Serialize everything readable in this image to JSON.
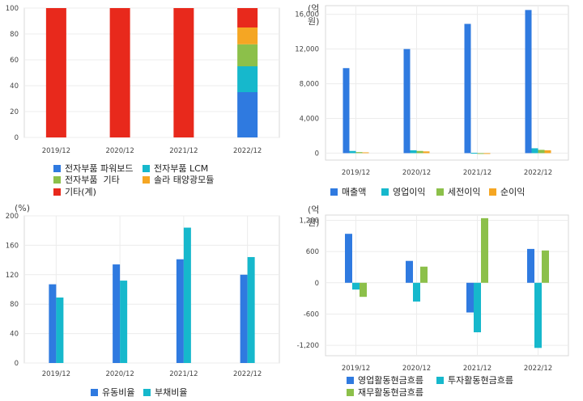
{
  "chart_data": [
    {
      "type": "bar",
      "stacked": true,
      "title": "",
      "unit": "",
      "categories": [
        "2019/12",
        "2020/12",
        "2021/12",
        "2022/12"
      ],
      "ylim": [
        0,
        100
      ],
      "yticks": [
        0,
        20,
        40,
        60,
        80,
        100
      ],
      "series": [
        {
          "name": "전자부품 파워보드",
          "color": "#2f7ae0",
          "values": [
            0,
            0,
            0,
            35
          ]
        },
        {
          "name": "전자부품 LCM",
          "color": "#16b8cc",
          "values": [
            0,
            0,
            0,
            20
          ]
        },
        {
          "name": "전자부품  기타",
          "color": "#8cc04a",
          "values": [
            0,
            0,
            0,
            17
          ]
        },
        {
          "name": "솔라 태양광모듈",
          "color": "#f5a623",
          "values": [
            0,
            0,
            0,
            13
          ]
        },
        {
          "name": "기타(계)",
          "color": "#e8291c",
          "values": [
            100,
            100,
            100,
            15
          ]
        }
      ],
      "legend_position": "bottom",
      "grid": true
    },
    {
      "type": "bar",
      "title": "",
      "unit": "(억원)",
      "categories": [
        "2019/12",
        "2020/12",
        "2021/12",
        "2022/12"
      ],
      "ylim": [
        -800,
        17000
      ],
      "yticks": [
        0,
        4000,
        8000,
        12000,
        16000
      ],
      "ytick_labels": [
        "0",
        "4,000",
        "8,000",
        "12,000",
        "16,000"
      ],
      "series": [
        {
          "name": "매출액",
          "color": "#2f7ae0",
          "values": [
            9800,
            12000,
            14900,
            16500
          ]
        },
        {
          "name": "영업이익",
          "color": "#16b8cc",
          "values": [
            250,
            330,
            40,
            560
          ]
        },
        {
          "name": "세전이익",
          "color": "#8cc04a",
          "values": [
            120,
            250,
            -80,
            380
          ]
        },
        {
          "name": "순이익",
          "color": "#f5a623",
          "values": [
            90,
            200,
            -90,
            330
          ]
        }
      ],
      "legend_position": "bottom",
      "grid": true
    },
    {
      "type": "bar",
      "title": "",
      "unit": "(%)",
      "categories": [
        "2019/12",
        "2020/12",
        "2021/12",
        "2022/12"
      ],
      "ylim": [
        0,
        200
      ],
      "yticks": [
        0,
        40,
        80,
        120,
        160,
        200
      ],
      "series": [
        {
          "name": "유동비율",
          "color": "#2f7ae0",
          "values": [
            107,
            134,
            141,
            120
          ]
        },
        {
          "name": "부채비율",
          "color": "#16b8cc",
          "values": [
            89,
            112,
            184,
            144
          ]
        }
      ],
      "legend_position": "bottom",
      "grid": true
    },
    {
      "type": "bar",
      "title": "",
      "unit": "(억원)",
      "categories": [
        "2019/12",
        "2020/12",
        "2021/12",
        "2022/12"
      ],
      "ylim": [
        -1400,
        1300
      ],
      "yticks": [
        -1200,
        -600,
        0,
        600,
        1200
      ],
      "ytick_labels": [
        "-1,200",
        "-600",
        "0",
        "600",
        "1,200"
      ],
      "series": [
        {
          "name": "영업활동현금흐름",
          "color": "#2f7ae0",
          "values": [
            940,
            420,
            -570,
            650
          ]
        },
        {
          "name": "투자활동현금흐름",
          "color": "#16b8cc",
          "values": [
            -130,
            -360,
            -950,
            -1250
          ]
        },
        {
          "name": "재무활동현금흐름",
          "color": "#8cc04a",
          "values": [
            -270,
            310,
            1240,
            620
          ]
        }
      ],
      "legend_position": "bottom",
      "grid": true
    }
  ]
}
